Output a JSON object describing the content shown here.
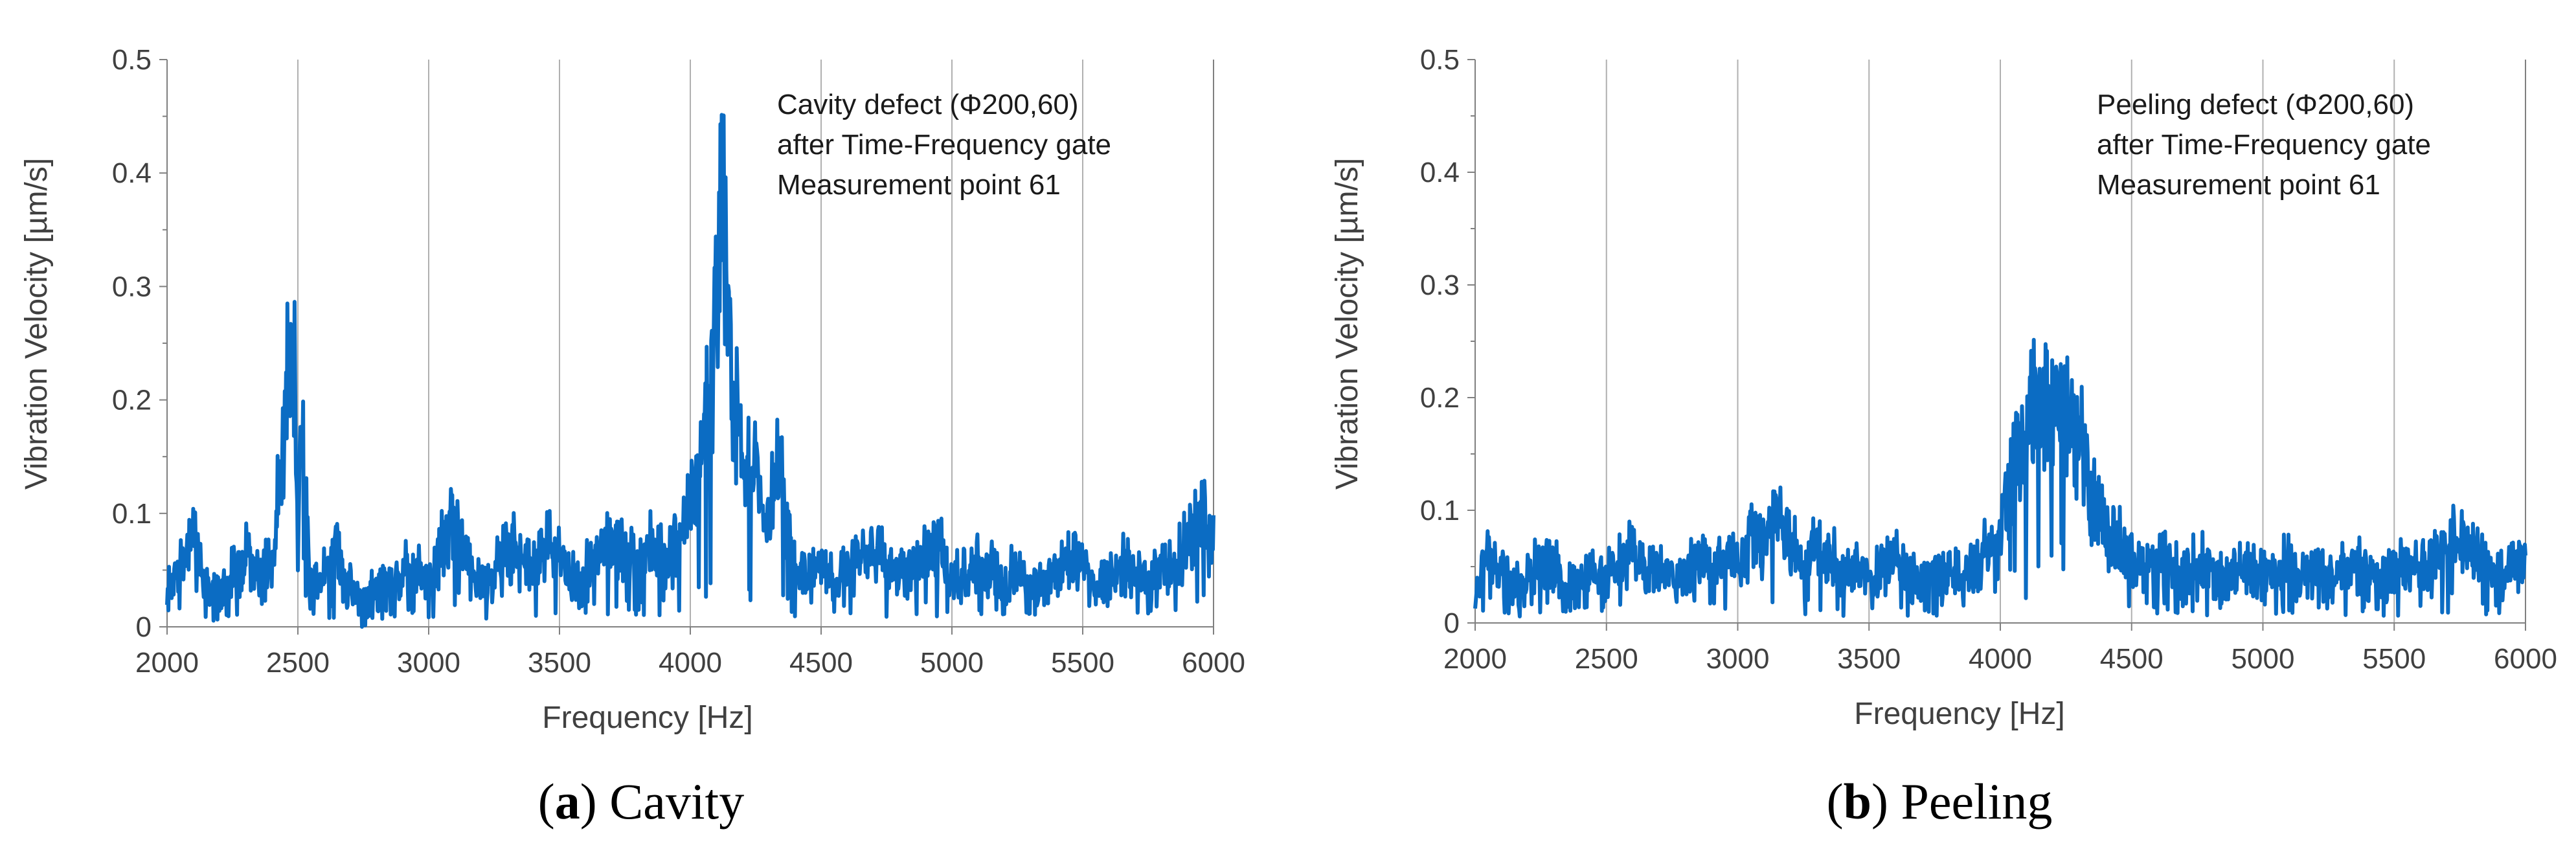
{
  "chart_data": [
    {
      "type": "line",
      "panel_id": "a",
      "caption_letter": "a",
      "caption_text": "Cavity",
      "xlabel": "Frequency [Hz]",
      "ylabel": "Vibration Velocity [µm/s]",
      "xlim": [
        2000,
        6000
      ],
      "ylim": [
        0,
        0.5
      ],
      "xticks": [
        "2000",
        "2500",
        "3000",
        "3500",
        "4000",
        "4500",
        "5000",
        "5500",
        "6000"
      ],
      "yticks": [
        "0",
        "0.1",
        "0.2",
        "0.3",
        "0.4",
        "0.5"
      ],
      "grid": "vertical",
      "series_color": "#0b6cc3",
      "annotation": [
        "Cavity defect (Φ200,60)",
        "after Time-Frequency gate",
        "Measurement point 61"
      ],
      "baseline": [
        [
          2000,
          0.03
        ],
        [
          2050,
          0.07
        ],
        [
          2100,
          0.1
        ],
        [
          2150,
          0.05
        ],
        [
          2200,
          0.03
        ],
        [
          2250,
          0.06
        ],
        [
          2300,
          0.08
        ],
        [
          2350,
          0.07
        ],
        [
          2400,
          0.06
        ],
        [
          2500,
          0.06
        ],
        [
          2550,
          0.04
        ],
        [
          2600,
          0.06
        ],
        [
          2650,
          0.08
        ],
        [
          2700,
          0.05
        ],
        [
          2750,
          0.03
        ],
        [
          2800,
          0.04
        ],
        [
          2850,
          0.05
        ],
        [
          2900,
          0.07
        ],
        [
          2950,
          0.06
        ],
        [
          3000,
          0.05
        ],
        [
          3050,
          0.09
        ],
        [
          3100,
          0.12
        ],
        [
          3150,
          0.07
        ],
        [
          3200,
          0.05
        ],
        [
          3250,
          0.06
        ],
        [
          3300,
          0.09
        ],
        [
          3350,
          0.08
        ],
        [
          3400,
          0.07
        ],
        [
          3450,
          0.1
        ],
        [
          3500,
          0.08
        ],
        [
          3550,
          0.05
        ],
        [
          3600,
          0.06
        ],
        [
          3650,
          0.09
        ],
        [
          3700,
          0.1
        ],
        [
          3750,
          0.08
        ],
        [
          3800,
          0.07
        ],
        [
          3850,
          0.1
        ],
        [
          3900,
          0.08
        ],
        [
          3950,
          0.09
        ],
        [
          4400,
          0.06
        ],
        [
          4450,
          0.05
        ],
        [
          4500,
          0.07
        ],
        [
          4550,
          0.05
        ],
        [
          4600,
          0.06
        ],
        [
          4650,
          0.08
        ],
        [
          4700,
          0.09
        ],
        [
          4750,
          0.07
        ],
        [
          4800,
          0.06
        ],
        [
          4850,
          0.07
        ],
        [
          4900,
          0.08
        ],
        [
          4950,
          0.09
        ],
        [
          5000,
          0.05
        ],
        [
          5050,
          0.06
        ],
        [
          5100,
          0.07
        ],
        [
          5150,
          0.06
        ],
        [
          5200,
          0.05
        ],
        [
          5250,
          0.06
        ],
        [
          5300,
          0.05
        ],
        [
          5350,
          0.04
        ],
        [
          5400,
          0.06
        ],
        [
          5450,
          0.08
        ],
        [
          5500,
          0.06
        ],
        [
          5550,
          0.05
        ],
        [
          5600,
          0.06
        ],
        [
          5650,
          0.07
        ],
        [
          5700,
          0.06
        ],
        [
          5750,
          0.05
        ],
        [
          5800,
          0.06
        ],
        [
          5850,
          0.07
        ],
        [
          5900,
          0.09
        ],
        [
          5950,
          0.12
        ],
        [
          6000,
          0.1
        ]
      ],
      "peaks": [
        [
          2470,
          0.31
        ],
        [
          2490,
          0.3
        ],
        [
          2510,
          0.28
        ],
        [
          4000,
          0.14
        ],
        [
          4050,
          0.2
        ],
        [
          4100,
          0.35
        ],
        [
          4115,
          0.48
        ],
        [
          4125,
          0.46
        ],
        [
          4140,
          0.38
        ],
        [
          4160,
          0.28
        ],
        [
          4200,
          0.2
        ],
        [
          4250,
          0.17
        ],
        [
          4300,
          0.12
        ],
        [
          4340,
          0.2
        ],
        [
          4380,
          0.1
        ]
      ]
    },
    {
      "type": "line",
      "panel_id": "b",
      "caption_letter": "b",
      "caption_text": "Peeling",
      "xlabel": "Frequency [Hz]",
      "ylabel": "Vibration Velocity [µm/s]",
      "xlim": [
        2000,
        6000
      ],
      "ylim": [
        0,
        0.5
      ],
      "xticks": [
        "2000",
        "2500",
        "3000",
        "3500",
        "4000",
        "4500",
        "5000",
        "5500",
        "6000"
      ],
      "yticks": [
        "0",
        "0.1",
        "0.2",
        "0.3",
        "0.4",
        "0.5"
      ],
      "grid": "vertical",
      "series_color": "#0b6cc3",
      "annotation": [
        "Peeling defect (Φ200,60)",
        "after Time-Frequency gate",
        "Measurement point 61"
      ],
      "baseline": [
        [
          2000,
          0.04
        ],
        [
          2050,
          0.08
        ],
        [
          2100,
          0.06
        ],
        [
          2150,
          0.04
        ],
        [
          2200,
          0.05
        ],
        [
          2250,
          0.07
        ],
        [
          2300,
          0.06
        ],
        [
          2350,
          0.04
        ],
        [
          2400,
          0.05
        ],
        [
          2450,
          0.06
        ],
        [
          2500,
          0.05
        ],
        [
          2550,
          0.07
        ],
        [
          2600,
          0.08
        ],
        [
          2650,
          0.06
        ],
        [
          2700,
          0.07
        ],
        [
          2750,
          0.05
        ],
        [
          2800,
          0.06
        ],
        [
          2850,
          0.07
        ],
        [
          2900,
          0.06
        ],
        [
          2950,
          0.08
        ],
        [
          3000,
          0.07
        ],
        [
          3050,
          0.1
        ],
        [
          3100,
          0.09
        ],
        [
          3150,
          0.12
        ],
        [
          3200,
          0.08
        ],
        [
          3250,
          0.07
        ],
        [
          3300,
          0.09
        ],
        [
          3350,
          0.08
        ],
        [
          3400,
          0.06
        ],
        [
          3450,
          0.07
        ],
        [
          3500,
          0.05
        ],
        [
          3550,
          0.06
        ],
        [
          3600,
          0.07
        ],
        [
          3650,
          0.05
        ],
        [
          3700,
          0.04
        ],
        [
          3750,
          0.05
        ],
        [
          3800,
          0.06
        ],
        [
          3850,
          0.05
        ],
        [
          3900,
          0.06
        ],
        [
          3950,
          0.08
        ],
        [
          4500,
          0.07
        ],
        [
          4550,
          0.06
        ],
        [
          4600,
          0.08
        ],
        [
          4650,
          0.07
        ],
        [
          4700,
          0.06
        ],
        [
          4750,
          0.07
        ],
        [
          4800,
          0.06
        ],
        [
          4850,
          0.05
        ],
        [
          4900,
          0.07
        ],
        [
          4950,
          0.06
        ],
        [
          5000,
          0.05
        ],
        [
          5050,
          0.06
        ],
        [
          5100,
          0.07
        ],
        [
          5150,
          0.05
        ],
        [
          5200,
          0.06
        ],
        [
          5250,
          0.05
        ],
        [
          5300,
          0.06
        ],
        [
          5350,
          0.07
        ],
        [
          5400,
          0.06
        ],
        [
          5450,
          0.05
        ],
        [
          5500,
          0.06
        ],
        [
          5550,
          0.07
        ],
        [
          5600,
          0.06
        ],
        [
          5650,
          0.07
        ],
        [
          5700,
          0.08
        ],
        [
          5750,
          0.1
        ],
        [
          5800,
          0.08
        ],
        [
          5850,
          0.07
        ],
        [
          5900,
          0.06
        ],
        [
          5950,
          0.07
        ],
        [
          6000,
          0.06
        ]
      ],
      "peaks": [
        [
          4000,
          0.1
        ],
        [
          4050,
          0.18
        ],
        [
          4100,
          0.22
        ],
        [
          4130,
          0.26
        ],
        [
          4160,
          0.24
        ],
        [
          4200,
          0.25
        ],
        [
          4230,
          0.26
        ],
        [
          4260,
          0.24
        ],
        [
          4300,
          0.21
        ],
        [
          4350,
          0.15
        ],
        [
          4400,
          0.11
        ],
        [
          4450,
          0.09
        ]
      ]
    }
  ]
}
